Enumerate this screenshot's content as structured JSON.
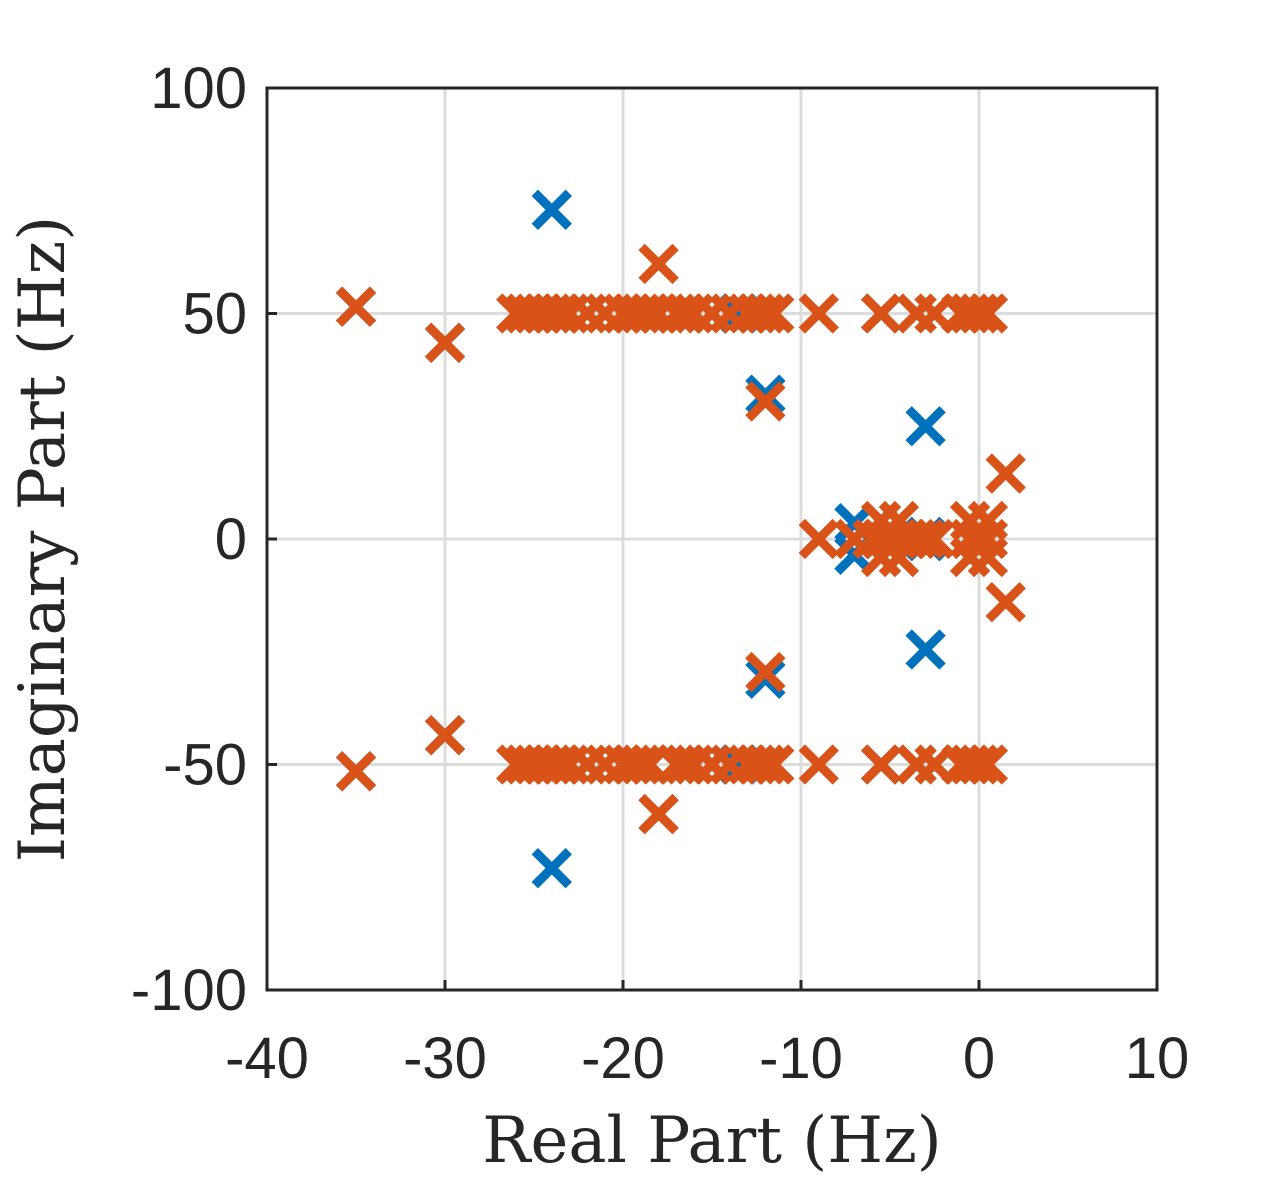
{
  "chart_data": {
    "type": "scatter",
    "xlabel": "Real Part (Hz)",
    "ylabel": "Imaginary Part (Hz)",
    "xlim": [
      -40,
      10
    ],
    "ylim": [
      -100,
      100
    ],
    "xticks": [
      "-40",
      "-30",
      "-20",
      "-10",
      "0",
      "10"
    ],
    "yticks": [
      "100",
      "50",
      "0",
      "-50",
      "-100"
    ],
    "grid": true,
    "marker": "x",
    "series": [
      {
        "color": "#0072BD",
        "x": [
          -35,
          -30,
          -24,
          -12,
          -3,
          -7,
          -3,
          -24,
          -12,
          -3,
          -30,
          -35,
          -13.5,
          -13.5,
          -5.5,
          -5.5,
          -7,
          -3
        ],
        "y": [
          51.5,
          43.5,
          73,
          32,
          25,
          3.5,
          0.5,
          -73,
          -31,
          -24.5,
          -43.5,
          -51.5,
          50,
          -50,
          50,
          -50,
          -3.5,
          -0.5
        ]
      },
      {
        "color": "#D95319",
        "x": [
          -35,
          -30,
          -26,
          -25.5,
          -25,
          -24.5,
          -24,
          -23.5,
          -23,
          -22,
          -21,
          -20,
          -19.5,
          -19,
          -18.5,
          -18,
          -17,
          -16.5,
          -16,
          -15,
          -14,
          -13,
          -12.5,
          -12,
          -11.5,
          -9,
          -5.5,
          -3.5,
          -2.5,
          -1,
          -0.5,
          0,
          0.5,
          -18,
          -12,
          1.5,
          -35,
          -30,
          -26,
          -25.5,
          -25,
          -24.5,
          -24,
          -23.5,
          -23,
          -22,
          -21,
          -20,
          -19.5,
          -19,
          -18.5,
          -18,
          -17,
          -16.5,
          -16,
          -15,
          -14,
          -13,
          -12.5,
          -12,
          -11.5,
          -9,
          -5.5,
          -3.5,
          -2.5,
          -1,
          -0.5,
          0,
          0.5,
          -18,
          -12,
          1.5,
          -9,
          -7,
          -6,
          -5.5,
          -5,
          -4.5,
          -4,
          -3.5,
          -3,
          -2.5,
          -0.5,
          0,
          0.5,
          -5.5,
          -4.5,
          -5.5,
          -4.5,
          -0.5,
          0.5,
          -0.5,
          0.5
        ],
        "y": [
          51.5,
          43.5,
          50,
          50,
          50,
          50,
          50,
          50,
          50,
          50,
          50,
          50,
          50,
          50,
          50,
          50,
          50,
          50,
          50,
          50,
          50,
          50,
          50,
          50,
          50,
          50,
          50,
          50,
          50,
          50,
          50,
          50,
          50,
          61,
          30.5,
          14.5,
          -51.5,
          -43.5,
          -50,
          -50,
          -50,
          -50,
          -50,
          -50,
          -50,
          -50,
          -50,
          -50,
          -50,
          -50,
          -50,
          -61,
          -50,
          -50,
          -50,
          -50,
          -50,
          -50,
          -50,
          -50,
          -50,
          -50,
          -50,
          -50,
          -50,
          -50,
          -50,
          -50,
          -50,
          -61,
          -29.5,
          -14,
          0,
          0,
          0,
          0,
          0,
          0,
          0,
          0,
          0,
          0,
          0,
          0,
          0,
          4,
          4,
          -4,
          -4,
          4,
          4,
          -4,
          -4
        ]
      }
    ]
  }
}
